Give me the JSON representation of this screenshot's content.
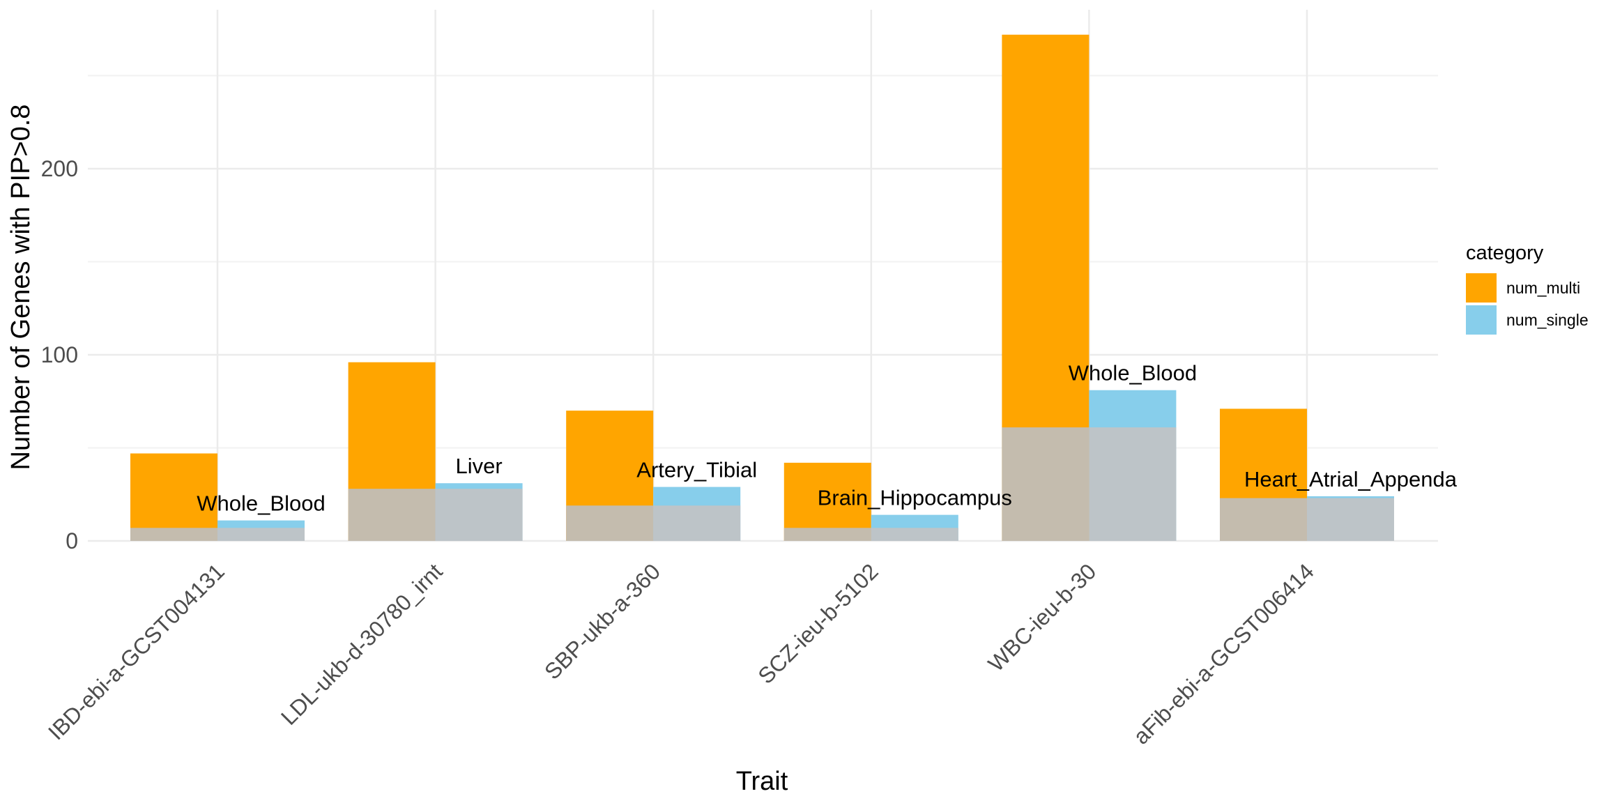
{
  "chart_data": {
    "type": "bar",
    "xlabel": "Trait",
    "ylabel": "Number of Genes with PIP>0.8",
    "ylim": [
      0,
      285
    ],
    "yticks": [
      0,
      100,
      200
    ],
    "grid": true,
    "legend": {
      "title": "category",
      "position": "right",
      "entries": [
        {
          "name": "num_multi",
          "color": "#FFA500"
        },
        {
          "name": "num_single",
          "color": "#87CEEB"
        }
      ]
    },
    "overlap_color_multi": "#C4BCAE",
    "overlap_color_single": "#BDC4C8",
    "categories": [
      "IBD-ebi-a-GCST004131",
      "LDL-ukb-d-30780_irnt",
      "SBP-ukb-a-360",
      "SCZ-ieu-b-5102",
      "WBC-ieu-b-30",
      "aFib-ebi-a-GCST006414"
    ],
    "series": [
      {
        "name": "num_multi",
        "color": "#FFA500",
        "values": [
          47,
          96,
          70,
          42,
          272,
          71
        ]
      },
      {
        "name": "num_single",
        "color": "#87CEEB",
        "values": [
          11,
          31,
          29,
          14,
          81,
          24
        ]
      }
    ],
    "overlap_values": [
      7,
      28,
      19,
      7,
      61,
      23
    ],
    "tissue_labels": [
      "Whole_Blood",
      "Liver",
      "Artery_Tibial",
      "Brain_Hippocampus",
      "Whole_Blood",
      "Heart_Atrial_Appenda"
    ]
  }
}
